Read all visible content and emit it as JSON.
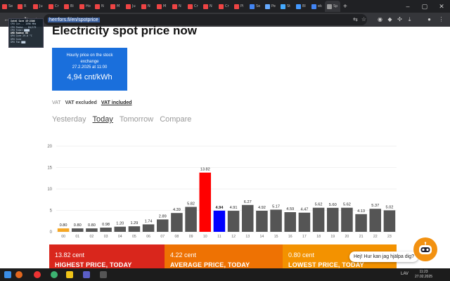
{
  "browser": {
    "tabs": [
      {
        "label": "Se",
        "color": "#e44"
      },
      {
        "label": "R",
        "color": "#e44"
      },
      {
        "label": "Ju",
        "color": "#e44"
      },
      {
        "label": "Cr",
        "color": "#e44"
      },
      {
        "label": "Bi",
        "color": "#e44"
      },
      {
        "label": "Ho",
        "color": "#e44"
      },
      {
        "label": "N",
        "color": "#e44"
      },
      {
        "label": "M",
        "color": "#e44"
      },
      {
        "label": "Ju",
        "color": "#e44"
      },
      {
        "label": "N",
        "color": "#e44"
      },
      {
        "label": "M",
        "color": "#e44"
      },
      {
        "label": "N",
        "color": "#e44"
      },
      {
        "label": "Cr",
        "color": "#e44"
      },
      {
        "label": "N",
        "color": "#e44"
      },
      {
        "label": "Cr",
        "color": "#e44"
      },
      {
        "label": "Pi",
        "color": "#e44"
      },
      {
        "label": "Se",
        "color": "#4285f4"
      },
      {
        "label": "Pe",
        "color": "#6af"
      },
      {
        "label": "St",
        "color": "#4af"
      },
      {
        "label": "Bl",
        "color": "#49f"
      },
      {
        "label": "ek",
        "color": "#4285f4"
      },
      {
        "label": "Sp",
        "color": "#999"
      }
    ],
    "url": "herrfors.fi/en/spotprice"
  },
  "hw_overlay": {
    "cpu_name": "Intel Core i5-2300",
    "cpu_lines": [
      "CPU Cor...  1596 MHz",
      "CPU Packa...  84/175",
      "CPU Total   ▇▇▇▇"
    ],
    "gpu_name": "AMD Radeon HD",
    "gpu_lines": [
      "GPU Core     29.0 °C",
      "GPU Core  ",
      "GPU Fan    ▇▇▇"
    ]
  },
  "page": {
    "title": "Electricity spot price now",
    "price_box": {
      "line1": "Hourly price on the stock",
      "line2": "exchange",
      "line3": "27.2.2025 at 11:00",
      "price": "4,94 cnt/kWh"
    },
    "vat": {
      "label": "VAT",
      "excluded": "VAT excluded",
      "included": "VAT included"
    },
    "day_tabs": [
      "Yesterday",
      "Today",
      "Tomorrow",
      "Compare"
    ],
    "summary": [
      {
        "value": "13.82 cent",
        "label": "HIGHEST PRICE, TODAY",
        "color": "#d9261c"
      },
      {
        "value": "4.22 cent",
        "label": "AVERAGE PRICE, TODAY",
        "color": "#ee7203"
      },
      {
        "value": "0.80 cent",
        "label": "LOWEST PRICE, TODAY",
        "color": "#f39200"
      }
    ],
    "chat_text": "Hej! Hur kan jag hjälpa dig?"
  },
  "chart_data": {
    "type": "bar",
    "categories": [
      "00",
      "01",
      "02",
      "03",
      "04",
      "05",
      "06",
      "07",
      "08",
      "09",
      "10",
      "11",
      "12",
      "13",
      "14",
      "15",
      "16",
      "17",
      "18",
      "19",
      "20",
      "21",
      "22",
      "23"
    ],
    "values": [
      0.8,
      0.8,
      0.8,
      0.98,
      1.2,
      1.29,
      1.74,
      2.89,
      4.39,
      5.82,
      13.82,
      4.94,
      4.91,
      6.27,
      4.92,
      5.17,
      4.59,
      4.47,
      5.62,
      5.6,
      5.62,
      4.13,
      5.37,
      5.02
    ],
    "value_labels": [
      "0.80",
      "0.80",
      "0.80",
      "0.98",
      "1.20",
      "1.29",
      "1.74",
      "2.89",
      "4.39",
      "5.82",
      "13.82",
      "4.94",
      "4.91",
      "6.27",
      "4.92",
      "5.17",
      "4.59",
      "4.47",
      "5.62",
      "5.60",
      "5.62",
      "4.13",
      "5.37",
      "5.02"
    ],
    "bar_colors": {
      "default": "#555555",
      "lowest": "#f5a623",
      "highest": "#ff0000",
      "current": "#0000ff"
    },
    "lowest_index": 0,
    "highest_index": 10,
    "current_index": 11,
    "ylim": [
      0,
      20
    ],
    "yticks": [
      0,
      5,
      10,
      15,
      20
    ],
    "grid": true
  },
  "taskbar": {
    "lang": "LAV",
    "time": "11:23",
    "date": "27.02.2025"
  }
}
